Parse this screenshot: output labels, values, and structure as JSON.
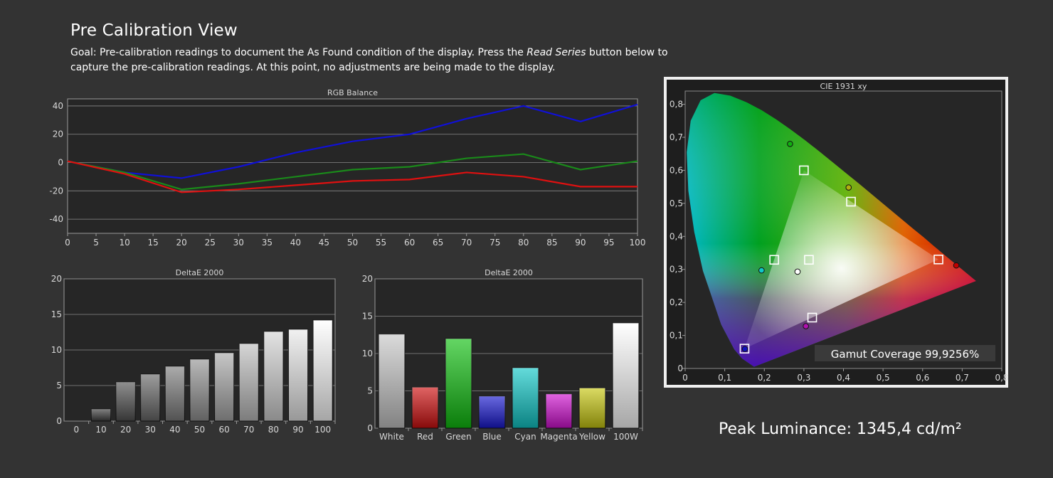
{
  "page": {
    "title": "Pre Calibration View",
    "goal_before": "Goal: Pre-calibration readings to document the As Found condition of the display. Press the ",
    "goal_emph": "Read Series",
    "goal_after": " button below to capture the pre-calibration readings. At this point, no adjustments are being made to the display."
  },
  "peak_luminance": "Peak Luminance: 1345,4 cd/m²",
  "colors": {
    "background": "#333333",
    "plot_bg": "#262626",
    "grid": "#8a8a8a",
    "red_line": "#e01010",
    "green_line": "#1a8a1a",
    "blue_line": "#1010d8"
  },
  "chart_data": [
    {
      "id": "rgb-balance",
      "type": "line",
      "title": "RGB Balance",
      "x": [
        0,
        10,
        20,
        30,
        40,
        50,
        60,
        70,
        80,
        90,
        100
      ],
      "xticks": [
        "0",
        "5",
        "10",
        "15",
        "20",
        "25",
        "30",
        "35",
        "40",
        "45",
        "50",
        "55",
        "60",
        "65",
        "70",
        "75",
        "80",
        "85",
        "90",
        "95",
        "100"
      ],
      "xlim": [
        0,
        100
      ],
      "yticks": [
        "40",
        "20",
        "0",
        "-20",
        "-40"
      ],
      "ylim": [
        -50,
        45
      ],
      "series": [
        {
          "color": "#1010d8",
          "values": [
            1,
            -7,
            -11,
            -3,
            7,
            15,
            20,
            31,
            40,
            29,
            41
          ]
        },
        {
          "color": "#1a8a1a",
          "values": [
            1,
            -7,
            -19,
            -15,
            -10,
            -5,
            -3,
            3,
            6,
            -5,
            1
          ]
        },
        {
          "color": "#e01010",
          "values": [
            1,
            -8,
            -21,
            -19,
            -16,
            -13,
            -12,
            -7,
            -10,
            -17,
            -17
          ]
        }
      ]
    },
    {
      "id": "deltae-grayscale",
      "type": "bar",
      "title": "DeltaE 2000",
      "categories": [
        "0",
        "10",
        "20",
        "30",
        "40",
        "50",
        "60",
        "70",
        "80",
        "90",
        "100"
      ],
      "values": [
        0,
        1.7,
        5.5,
        6.6,
        7.7,
        8.7,
        9.6,
        10.9,
        12.6,
        12.9,
        14.2
      ],
      "yticks": [
        "20",
        "15",
        "10",
        "5",
        "0"
      ],
      "ylim": [
        0,
        20
      ]
    },
    {
      "id": "deltae-colors",
      "type": "bar",
      "title": "DeltaE 2000",
      "categories": [
        "White",
        "Red",
        "Green",
        "Blue",
        "Cyan",
        "Magenta",
        "Yellow",
        "100W"
      ],
      "values": [
        12.6,
        5.5,
        12.0,
        4.3,
        8.1,
        4.6,
        5.4,
        14.1
      ],
      "bar_colors": [
        "#c8c8c8",
        "#d01010",
        "#10c010",
        "#1818d0",
        "#10c8c8",
        "#d010d0",
        "#c8c810",
        "#ffffff"
      ],
      "yticks": [
        "20",
        "15",
        "10",
        "5",
        "0"
      ],
      "ylim": [
        0,
        20
      ]
    },
    {
      "id": "cie-1931",
      "type": "scatter",
      "title": "CIE 1931 xy",
      "xticks": [
        "0",
        "0,1",
        "0,2",
        "0,3",
        "0,4",
        "0,5",
        "0,6",
        "0,7",
        "0,8"
      ],
      "yticks": [
        "0,8",
        "0,7",
        "0,6",
        "0,5",
        "0,4",
        "0,3",
        "0,2",
        "0,1",
        "0"
      ],
      "xlim": [
        0,
        0.8
      ],
      "ylim": [
        0,
        0.84
      ],
      "targets": [
        {
          "name": "Red",
          "x": 0.64,
          "y": 0.33
        },
        {
          "name": "Green",
          "x": 0.3,
          "y": 0.6
        },
        {
          "name": "Blue",
          "x": 0.15,
          "y": 0.06
        },
        {
          "name": "White",
          "x": 0.3127,
          "y": 0.329
        },
        {
          "name": "Cyan",
          "x": 0.225,
          "y": 0.329
        },
        {
          "name": "Magenta",
          "x": 0.321,
          "y": 0.154
        },
        {
          "name": "Yellow",
          "x": 0.419,
          "y": 0.505
        }
      ],
      "measured": [
        {
          "name": "Red",
          "x": 0.685,
          "y": 0.312,
          "color": "#c00000"
        },
        {
          "name": "Green",
          "x": 0.265,
          "y": 0.68,
          "color": "#10b010"
        },
        {
          "name": "Blue",
          "x": 0.151,
          "y": 0.059,
          "color": "#1010c0"
        },
        {
          "name": "White",
          "x": 0.284,
          "y": 0.293,
          "color": "#ffffff"
        },
        {
          "name": "Cyan",
          "x": 0.193,
          "y": 0.297,
          "color": "#10c8c8"
        },
        {
          "name": "Magenta",
          "x": 0.305,
          "y": 0.128,
          "color": "#b010b0"
        },
        {
          "name": "Yellow",
          "x": 0.413,
          "y": 0.548,
          "color": "#b0b010"
        }
      ],
      "gamut_coverage": "Gamut Coverage 99,9256%"
    }
  ]
}
